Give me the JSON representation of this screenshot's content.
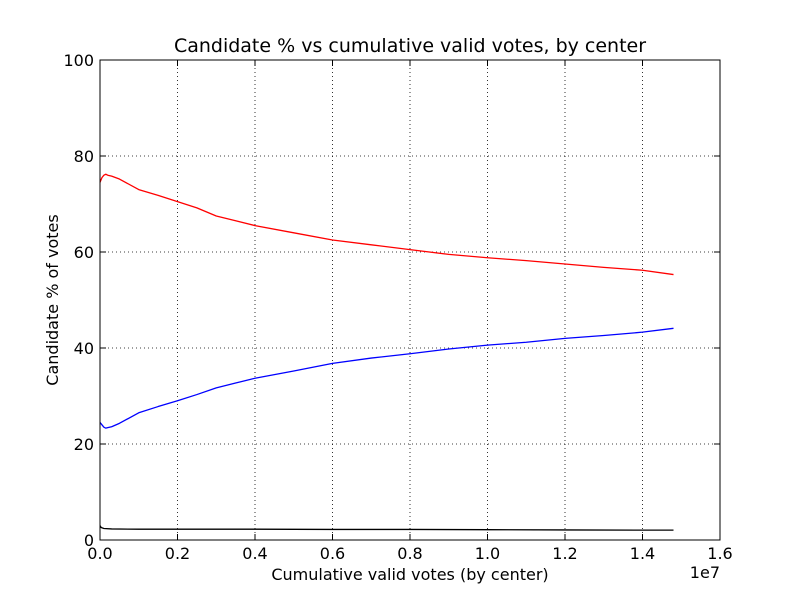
{
  "chart_data": {
    "type": "line",
    "title": "Candidate % vs cumulative valid votes, by center",
    "xlabel": "Cumulative valid votes (by center)",
    "ylabel": "Candidate % of votes",
    "x_offset_text": "1e7",
    "x_scale_factor": 10000000,
    "xlim": [
      0,
      16000000
    ],
    "ylim": [
      0,
      100
    ],
    "x_ticks": [
      0,
      2000000,
      4000000,
      6000000,
      8000000,
      10000000,
      12000000,
      14000000,
      16000000
    ],
    "x_tick_labels": [
      "0.0",
      "0.2",
      "0.4",
      "0.6",
      "0.8",
      "1.0",
      "1.2",
      "1.4",
      "1.6"
    ],
    "y_ticks": [
      0,
      20,
      40,
      60,
      80,
      100
    ],
    "y_tick_labels": [
      "0",
      "20",
      "40",
      "60",
      "80",
      "100"
    ],
    "grid": true,
    "series": [
      {
        "color": "#ff0000",
        "x": [
          0,
          50000,
          100000,
          150000,
          200000,
          300000,
          500000,
          1000000,
          1500000,
          2000000,
          2500000,
          3000000,
          3500000,
          4000000,
          5000000,
          6000000,
          7000000,
          8000000,
          9000000,
          10000000,
          11000000,
          12000000,
          13000000,
          14000000,
          14800000
        ],
        "y": [
          74.5,
          75.5,
          76.0,
          76.2,
          76.0,
          75.8,
          75.2,
          73.0,
          71.8,
          70.5,
          69.2,
          67.5,
          66.5,
          65.5,
          64.0,
          62.5,
          61.5,
          60.5,
          59.5,
          58.8,
          58.2,
          57.5,
          56.8,
          56.2,
          55.3
        ]
      },
      {
        "color": "#0000ff",
        "x": [
          0,
          50000,
          100000,
          150000,
          200000,
          300000,
          500000,
          1000000,
          1500000,
          2000000,
          2500000,
          3000000,
          3500000,
          4000000,
          5000000,
          6000000,
          7000000,
          8000000,
          9000000,
          10000000,
          11000000,
          12000000,
          13000000,
          14000000,
          14800000
        ],
        "y": [
          24.5,
          24.0,
          23.5,
          23.3,
          23.4,
          23.6,
          24.3,
          26.5,
          27.8,
          29.0,
          30.3,
          31.7,
          32.7,
          33.7,
          35.2,
          36.8,
          37.9,
          38.8,
          39.8,
          40.6,
          41.2,
          42.0,
          42.6,
          43.3,
          44.1
        ]
      },
      {
        "color": "#000000",
        "x": [
          0,
          30000,
          100000,
          300000,
          1000000,
          2000000,
          3000000,
          4000000,
          6000000,
          8000000,
          10000000,
          12000000,
          14000000,
          14800000
        ],
        "y": [
          3.0,
          2.6,
          2.4,
          2.3,
          2.25,
          2.25,
          2.25,
          2.25,
          2.2,
          2.2,
          2.15,
          2.1,
          2.05,
          2.05
        ]
      }
    ]
  }
}
